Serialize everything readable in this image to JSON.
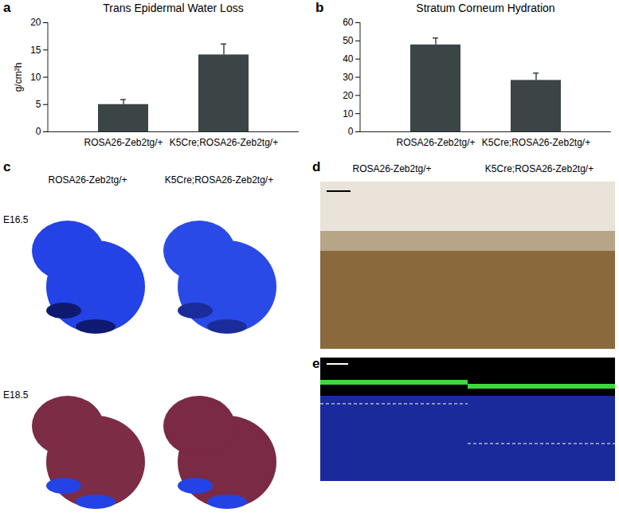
{
  "chart_data": [
    {
      "type": "bar",
      "panel_label": "a",
      "title": "Trans Epidermal Water Loss",
      "y_label": "g/cm²h",
      "categories": [
        "ROSA26-Zeb2tg/+",
        "K5Cre;ROSA26-Zeb2tg/+"
      ],
      "values": [
        5.0,
        14.1
      ],
      "errors": [
        0.9,
        2.0
      ],
      "color": "#3b4545",
      "ylim": [
        0,
        20
      ],
      "yticks": [
        0,
        5,
        10,
        15,
        20
      ],
      "grid": false
    },
    {
      "type": "bar",
      "panel_label": "b",
      "title": "Stratum Corneum Hydration",
      "categories": [
        "ROSA26-Zeb2tg/+",
        "K5Cre;ROSA26-Zeb2tg/+"
      ],
      "values": [
        47.8,
        28.3
      ],
      "errors": [
        3.8,
        4.0
      ],
      "color": "#3b4545",
      "ylim": [
        0,
        60
      ],
      "yticks": [
        0,
        10,
        20,
        30,
        40,
        50,
        60
      ],
      "grid": false
    }
  ],
  "image_panels": [
    {
      "panel_label": "c",
      "column_labels": [
        "ROSA26-Zeb2tg/+",
        "K5Cre;ROSA26-Zeb2tg/+"
      ],
      "row_labels": [
        "E16.5",
        "E18.5"
      ]
    },
    {
      "panel_label": "d",
      "column_labels": [
        "ROSA26-Zeb2tg/+",
        "K5Cre;ROSA26-Zeb2tg/+"
      ]
    },
    {
      "panel_label": "e"
    }
  ]
}
